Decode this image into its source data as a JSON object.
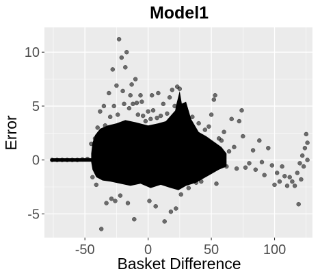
{
  "chart_data": {
    "type": "scatter",
    "title": "Model1",
    "xlabel": "Basket Difference",
    "ylabel": "Error",
    "xlim": [
      -82,
      130
    ],
    "ylim": [
      -7.2,
      12.3
    ],
    "x_ticks": [
      -50,
      0,
      50,
      100
    ],
    "x_tick_labels": [
      "-50",
      "0",
      "50",
      "100"
    ],
    "y_ticks": [
      -5,
      0,
      5,
      10
    ],
    "y_tick_labels": [
      "-5",
      "0",
      "5",
      "10"
    ],
    "grid": true,
    "panel_background": "#ebebeb",
    "grid_color": "#ffffff",
    "point_color": "#000000",
    "point_opacity": 0.55,
    "points": [
      [
        -76,
        0.0
      ],
      [
        -72,
        0.0
      ],
      [
        -68,
        0.0
      ],
      [
        -64,
        0.0
      ],
      [
        -60,
        0.0
      ],
      [
        -56,
        0.0
      ],
      [
        -52,
        0.05
      ],
      [
        -48,
        0.1
      ],
      [
        -45,
        1.5
      ],
      [
        -44,
        -1.6
      ],
      [
        -42,
        2.0
      ],
      [
        -41,
        -2.3
      ],
      [
        -40,
        3.0
      ],
      [
        -38,
        4.5
      ],
      [
        -37,
        -6.4
      ],
      [
        -35,
        5.0
      ],
      [
        -34,
        3.2
      ],
      [
        -33,
        -4.0
      ],
      [
        -31,
        6.2
      ],
      [
        -30,
        4.0
      ],
      [
        -29,
        -3.6
      ],
      [
        -28,
        8.4
      ],
      [
        -27,
        5.0
      ],
      [
        -26,
        -3.8
      ],
      [
        -25,
        6.9
      ],
      [
        -24,
        4.2
      ],
      [
        -23,
        11.2
      ],
      [
        -22,
        -3.3
      ],
      [
        -21,
        9.5
      ],
      [
        -20,
        6.4
      ],
      [
        -19,
        5.2
      ],
      [
        -18,
        8.6
      ],
      [
        -17,
        10.0
      ],
      [
        -16,
        -4.0
      ],
      [
        -15,
        4.8
      ],
      [
        -14,
        6.0
      ],
      [
        -13,
        7.0
      ],
      [
        -12,
        5.2
      ],
      [
        -11,
        -5.5
      ],
      [
        -10,
        7.5
      ],
      [
        -9,
        5.3
      ],
      [
        -8,
        4.2
      ],
      [
        -6,
        6.0
      ],
      [
        -5,
        5.4
      ],
      [
        -4,
        4.1
      ],
      [
        -2,
        3.6
      ],
      [
        0,
        4.5
      ],
      [
        1,
        -3.8
      ],
      [
        2,
        3.8
      ],
      [
        3,
        6.0
      ],
      [
        4,
        4.6
      ],
      [
        6,
        -4.3
      ],
      [
        7,
        3.9
      ],
      [
        8,
        6.2
      ],
      [
        10,
        4.1
      ],
      [
        12,
        5.2
      ],
      [
        13,
        -5.7
      ],
      [
        15,
        4.3
      ],
      [
        17,
        5.8
      ],
      [
        18,
        -4.8
      ],
      [
        19,
        6.5
      ],
      [
        21,
        5.0
      ],
      [
        22,
        -4.5
      ],
      [
        23,
        6.8
      ],
      [
        25,
        6.6
      ],
      [
        26,
        -3.2
      ],
      [
        28,
        4.2
      ],
      [
        30,
        4.6
      ],
      [
        32,
        -2.6
      ],
      [
        35,
        4.0
      ],
      [
        38,
        -2.1
      ],
      [
        40,
        3.4
      ],
      [
        42,
        -2.0
      ],
      [
        45,
        2.8
      ],
      [
        48,
        3.1
      ],
      [
        50,
        4.2
      ],
      [
        52,
        5.6
      ],
      [
        53,
        6.0
      ],
      [
        54,
        -2.2
      ],
      [
        56,
        2.0
      ],
      [
        58,
        1.8
      ],
      [
        60,
        2.6
      ],
      [
        62,
        -0.6
      ],
      [
        64,
        0.8
      ],
      [
        66,
        3.8
      ],
      [
        68,
        1.2
      ],
      [
        70,
        -0.8
      ],
      [
        72,
        3.6
      ],
      [
        74,
        4.6
      ],
      [
        75,
        2.2
      ],
      [
        77,
        -0.7
      ],
      [
        80,
        -0.3
      ],
      [
        83,
        0.9
      ],
      [
        85,
        -0.9
      ],
      [
        88,
        1.8
      ],
      [
        90,
        -0.2
      ],
      [
        92,
        -1.4
      ],
      [
        95,
        1.1
      ],
      [
        98,
        -0.5
      ],
      [
        100,
        -2.3
      ],
      [
        102,
        -1.2
      ],
      [
        104,
        -2.0
      ],
      [
        106,
        -0.6
      ],
      [
        108,
        -1.5
      ],
      [
        110,
        -2.4
      ],
      [
        112,
        -1.6
      ],
      [
        114,
        -2.0
      ],
      [
        116,
        -2.4
      ],
      [
        118,
        -1.2
      ],
      [
        119,
        -4.1
      ],
      [
        120,
        -0.3
      ],
      [
        121,
        -1.8
      ],
      [
        122,
        0.4
      ],
      [
        123,
        -0.6
      ],
      [
        124,
        1.1
      ],
      [
        125,
        2.4
      ],
      [
        126,
        1.6
      ],
      [
        126,
        0.0
      ]
    ]
  }
}
